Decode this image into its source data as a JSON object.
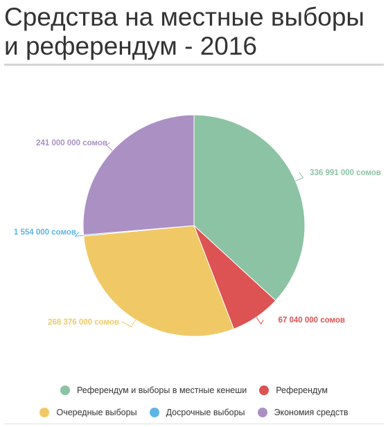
{
  "title": "Средства на местные выборы и референдум - 2016",
  "chart_data": {
    "type": "pie",
    "unit": "сомов",
    "slices": [
      {
        "name": "Референдум и выборы в местные кенеши",
        "value": 336991000,
        "label": "336 991 000 сомов",
        "color": "#8cc3a4"
      },
      {
        "name": "Референдум",
        "value": 67040000,
        "label": "67 040 000 сомов",
        "color": "#dd5252"
      },
      {
        "name": "Очередные выборы",
        "value": 268376000,
        "label": "268 376 000 сомов",
        "color": "#f0c966"
      },
      {
        "name": "Досрочные выборы",
        "value": 1554000,
        "label": "1 554 000 сомов",
        "color": "#5eb6e6"
      },
      {
        "name": "Экономия средств",
        "value": 241000000,
        "label": "241 000 000 сомов",
        "color": "#ab90c4"
      }
    ],
    "legend_position": "bottom"
  }
}
